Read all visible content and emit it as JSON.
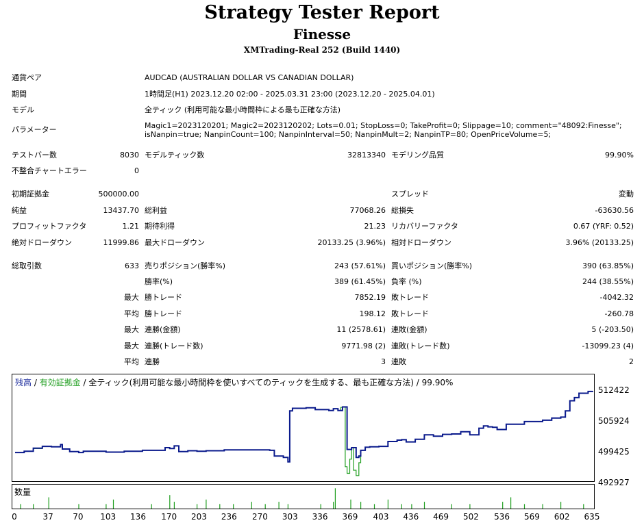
{
  "report": {
    "title": "Strategy Tester Report",
    "ea_name": "Finesse",
    "server": "XMTrading-Real 252 (Build 1440)"
  },
  "info": {
    "symbol_label": "通貨ペア",
    "symbol_value": "AUDCAD (AUSTRALIAN DOLLAR VS CANADIAN DOLLAR)",
    "period_label": "期間",
    "period_value": "1時間足(H1) 2023.12.20 02:00 - 2025.03.31 23:00 (2023.12.20 - 2025.04.01)",
    "model_label": "モデル",
    "model_value": "全ティック (利用可能な最小時間枠による最も正確な方法)",
    "params_label": "パラメーター",
    "params_line1": "Magic1=2023120201; Magic2=2023120202; Lots=0.01; StopLoss=0; TakeProfit=0; Slippage=10; comment=\"48092:Finesse\";",
    "params_line2": "isNanpin=true; NanpinCount=100; NanpinInterval=50; NanpinMult=2; NanpinTP=80; OpenPriceVolume=5;"
  },
  "stats": {
    "bars_label": "テストバー数",
    "bars_value": "8030",
    "ticks_label": "モデルティック数",
    "ticks_value": "32813340",
    "quality_label": "モデリング品質",
    "quality_value": "99.90%",
    "mismatch_label": "不整合チャートエラー",
    "mismatch_value": "0",
    "deposit_label": "初期証拠金",
    "deposit_value": "500000.00",
    "spread_label": "スプレッド",
    "spread_value": "変動",
    "net_label": "純益",
    "net_value": "13437.70",
    "gross_profit_label": "総利益",
    "gross_profit_value": "77068.26",
    "gross_loss_label": "総損失",
    "gross_loss_value": "-63630.56",
    "pf_label": "プロフィットファクタ",
    "pf_value": "1.21",
    "payoff_label": "期待利得",
    "payoff_value": "21.23",
    "rf_label": "リカバリーファクタ",
    "rf_value": "0.67 (YRF: 0.52)",
    "abs_dd_label": "絶対ドローダウン",
    "abs_dd_value": "11999.86",
    "max_dd_label": "最大ドローダウン",
    "max_dd_value": "20133.25 (3.96%)",
    "rel_dd_label": "相対ドローダウン",
    "rel_dd_value": "3.96% (20133.25)",
    "trades_label": "総取引数",
    "trades_value": "633",
    "short_label": "売りポジション(勝率%)",
    "short_value": "243 (57.61%)",
    "long_label": "買いポジション(勝率%)",
    "long_value": "390 (63.85%)",
    "win_label": "勝率(%)",
    "win_value": "389 (61.45%)",
    "loss_label": "負率 (%)",
    "loss_value": "244 (38.55%)",
    "max_prefix": "最大",
    "avg_prefix": "平均",
    "largest_win_label": "勝トレード",
    "largest_win_value": "7852.19",
    "largest_loss_label": "敗トレード",
    "largest_loss_value": "-4042.32",
    "avg_win_label": "勝トレード",
    "avg_win_value": "198.12",
    "avg_loss_label": "敗トレード",
    "avg_loss_value": "-260.78",
    "consec_wins_label": "連勝(金額)",
    "consec_wins_value": "11 (2578.61)",
    "consec_losses_label": "連敗(金額)",
    "consec_losses_value": "5 (-203.50)",
    "consec_profit_label": "連勝(トレード数)",
    "consec_profit_value": "9771.98 (2)",
    "consec_loss_label": "連敗(トレード数)",
    "consec_loss_value": "-13099.23 (4)",
    "avg_consec_wins_label": "連勝",
    "avg_consec_wins_value": "3",
    "avg_consec_losses_label": "連敗",
    "avg_consec_losses_value": "2"
  },
  "chart_legend": {
    "balance": "残高",
    "sep1": " / ",
    "equity": "有効証拠金",
    "rest": " / 全ティック(利用可能な最小時間枠を使いすべてのティックを生成する、最も正確な方法) / 99.90%",
    "volume_label": "数量"
  },
  "colors": {
    "balance": "#0a1a8c",
    "equity": "#1f9e1f",
    "legend_balance": "#1a2a9c",
    "legend_equity": "#1f9e1f"
  },
  "chart_data": {
    "type": "line",
    "title": "",
    "xlabel": "",
    "ylabel": "",
    "x_ticks": [
      0,
      37,
      70,
      103,
      136,
      170,
      203,
      236,
      270,
      303,
      336,
      369,
      403,
      436,
      469,
      502,
      536,
      569,
      602,
      635
    ],
    "y_ticks": [
      512422,
      505924,
      499425,
      492927
    ],
    "xlim": [
      0,
      635
    ],
    "ylim": [
      492927,
      515500
    ],
    "series": [
      {
        "name": "残高",
        "x": [
          0,
          10,
          20,
          30,
          40,
          50,
          52,
          55,
          60,
          70,
          75,
          100,
          120,
          140,
          155,
          165,
          170,
          175,
          180,
          190,
          200,
          210,
          230,
          260,
          280,
          285,
          290,
          295,
          300,
          302,
          305,
          310,
          320,
          330,
          345,
          350,
          355,
          360,
          365,
          370,
          375,
          378,
          380,
          385,
          390,
          400,
          410,
          420,
          425,
          430,
          440,
          450,
          460,
          470,
          480,
          490,
          500,
          510,
          515,
          520,
          525,
          530,
          540,
          560,
          580,
          590,
          600,
          605,
          610,
          615,
          620,
          630,
          635
        ],
        "y": [
          499400,
          499700,
          500400,
          500800,
          500700,
          501200,
          500200,
          500200,
          499600,
          499400,
          499700,
          499500,
          499700,
          499900,
          499900,
          500500,
          500300,
          500900,
          499600,
          499800,
          499700,
          499800,
          500000,
          500000,
          499900,
          498600,
          498600,
          498300,
          497300,
          508800,
          509400,
          509400,
          509500,
          509100,
          508900,
          509300,
          508900,
          509700,
          500100,
          500500,
          498300,
          498600,
          499900,
          500600,
          500700,
          500800,
          501900,
          502200,
          502300,
          501800,
          502400,
          503400,
          503100,
          503500,
          503600,
          504100,
          503400,
          504900,
          505400,
          505200,
          505100,
          504600,
          505800,
          506400,
          506700,
          507200,
          507400,
          508800,
          511100,
          511800,
          512800,
          513200,
          513300
        ]
      },
      {
        "name": "有効証拠金",
        "x": [
          0,
          10,
          20,
          30,
          40,
          50,
          52,
          55,
          60,
          70,
          75,
          100,
          120,
          140,
          155,
          165,
          170,
          175,
          180,
          190,
          200,
          210,
          230,
          260,
          280,
          285,
          290,
          295,
          300,
          302,
          305,
          310,
          320,
          330,
          345,
          350,
          355,
          358,
          360,
          363,
          365,
          368,
          370,
          372,
          375,
          378,
          380,
          385,
          390,
          400,
          410,
          420,
          425,
          430,
          440,
          450,
          460,
          470,
          480,
          490,
          500,
          510,
          515,
          520,
          525,
          530,
          540,
          560,
          580,
          590,
          600,
          605,
          610,
          615,
          620,
          630,
          635
        ],
        "y": [
          499400,
          499700,
          500300,
          500800,
          500700,
          501200,
          500200,
          500200,
          499600,
          499400,
          499700,
          499500,
          499700,
          499900,
          499900,
          500500,
          500300,
          500900,
          499600,
          499800,
          499700,
          499800,
          500000,
          500000,
          499900,
          498600,
          498600,
          498300,
          497300,
          508800,
          509400,
          509400,
          509500,
          509100,
          508900,
          509300,
          508900,
          509600,
          509700,
          496200,
          494700,
          497900,
          500500,
          495400,
          494200,
          497100,
          499900,
          500600,
          500700,
          500800,
          501900,
          502200,
          502300,
          501800,
          502400,
          503400,
          503100,
          503500,
          503600,
          504100,
          503400,
          504900,
          505400,
          505200,
          505100,
          504600,
          505800,
          506400,
          506700,
          507200,
          507400,
          508800,
          511100,
          511800,
          512800,
          513200,
          513300
        ]
      }
    ],
    "volume": {
      "x": [
        6,
        20,
        37,
        70,
        100,
        108,
        150,
        170,
        175,
        200,
        210,
        225,
        240,
        260,
        275,
        290,
        300,
        336,
        350,
        352,
        369,
        380,
        395,
        410,
        425,
        436,
        450,
        480,
        500,
        536,
        545,
        560,
        580,
        600,
        625
      ],
      "values": [
        0.2,
        0.2,
        0.5,
        0.2,
        0.2,
        0.4,
        0.2,
        0.6,
        0.3,
        0.2,
        0.4,
        0.2,
        0.2,
        0.3,
        0.2,
        0.3,
        0.2,
        0.2,
        0.3,
        0.9,
        0.4,
        0.3,
        0.2,
        0.4,
        0.2,
        0.2,
        0.3,
        0.2,
        0.2,
        0.3,
        0.5,
        0.2,
        0.2,
        0.3,
        0.2
      ]
    }
  }
}
